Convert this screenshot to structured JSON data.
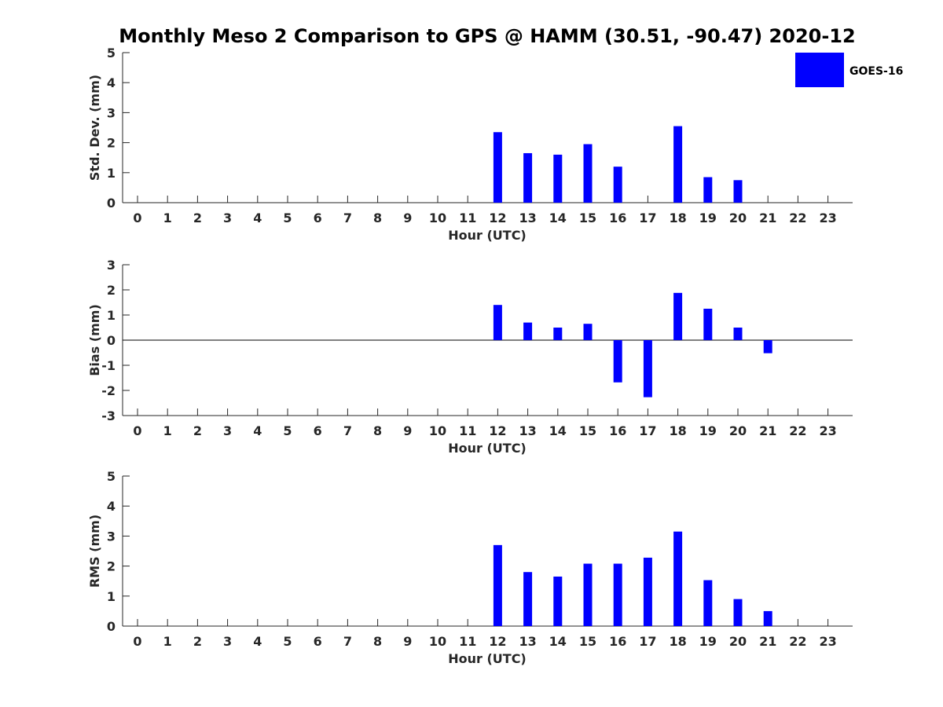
{
  "figure": {
    "title": "Monthly Meso 2 Comparison to GPS @ HAMM (30.51, -90.47) 2020-12"
  },
  "legend": {
    "label": "GOES-16",
    "color": "#0000ff",
    "placement": "top-right"
  },
  "chart_data": [
    {
      "type": "bar",
      "name": "stddev",
      "xlabel": "Hour (UTC)",
      "ylabel": "Std. Dev. (mm)",
      "categories": [
        "0",
        "1",
        "2",
        "3",
        "4",
        "5",
        "6",
        "7",
        "8",
        "9",
        "10",
        "11",
        "12",
        "13",
        "14",
        "15",
        "16",
        "17",
        "18",
        "19",
        "20",
        "21",
        "22",
        "23"
      ],
      "ylim": [
        0,
        5
      ],
      "yticks": [
        0,
        1,
        2,
        3,
        4,
        5
      ],
      "values": [
        null,
        null,
        null,
        null,
        null,
        null,
        null,
        null,
        null,
        null,
        null,
        null,
        2.35,
        1.65,
        1.6,
        1.95,
        1.2,
        null,
        2.55,
        0.85,
        0.75,
        null,
        null,
        null
      ],
      "color": "#0000ff",
      "grid": false
    },
    {
      "type": "bar",
      "name": "bias",
      "xlabel": "Hour (UTC)",
      "ylabel": "Bias (mm)",
      "categories": [
        "0",
        "1",
        "2",
        "3",
        "4",
        "5",
        "6",
        "7",
        "8",
        "9",
        "10",
        "11",
        "12",
        "13",
        "14",
        "15",
        "16",
        "17",
        "18",
        "19",
        "20",
        "21",
        "22",
        "23"
      ],
      "ylim": [
        -3,
        3
      ],
      "yticks": [
        -3,
        -2,
        -1,
        0,
        1,
        2,
        3
      ],
      "values": [
        null,
        null,
        null,
        null,
        null,
        null,
        null,
        null,
        null,
        null,
        null,
        null,
        1.4,
        0.7,
        0.5,
        0.65,
        -1.68,
        -2.27,
        1.88,
        1.25,
        0.5,
        -0.52,
        null,
        null
      ],
      "color": "#0000ff",
      "grid": false
    },
    {
      "type": "bar",
      "name": "rms",
      "xlabel": "Hour (UTC)",
      "ylabel": "RMS (mm)",
      "categories": [
        "0",
        "1",
        "2",
        "3",
        "4",
        "5",
        "6",
        "7",
        "8",
        "9",
        "10",
        "11",
        "12",
        "13",
        "14",
        "15",
        "16",
        "17",
        "18",
        "19",
        "20",
        "21",
        "22",
        "23"
      ],
      "ylim": [
        0,
        5
      ],
      "yticks": [
        0,
        1,
        2,
        3,
        4,
        5
      ],
      "values": [
        null,
        null,
        null,
        null,
        null,
        null,
        null,
        null,
        null,
        null,
        null,
        null,
        2.7,
        1.8,
        1.65,
        2.08,
        2.08,
        2.28,
        3.15,
        1.53,
        0.9,
        0.5,
        null,
        null
      ],
      "color": "#0000ff",
      "grid": false
    }
  ]
}
